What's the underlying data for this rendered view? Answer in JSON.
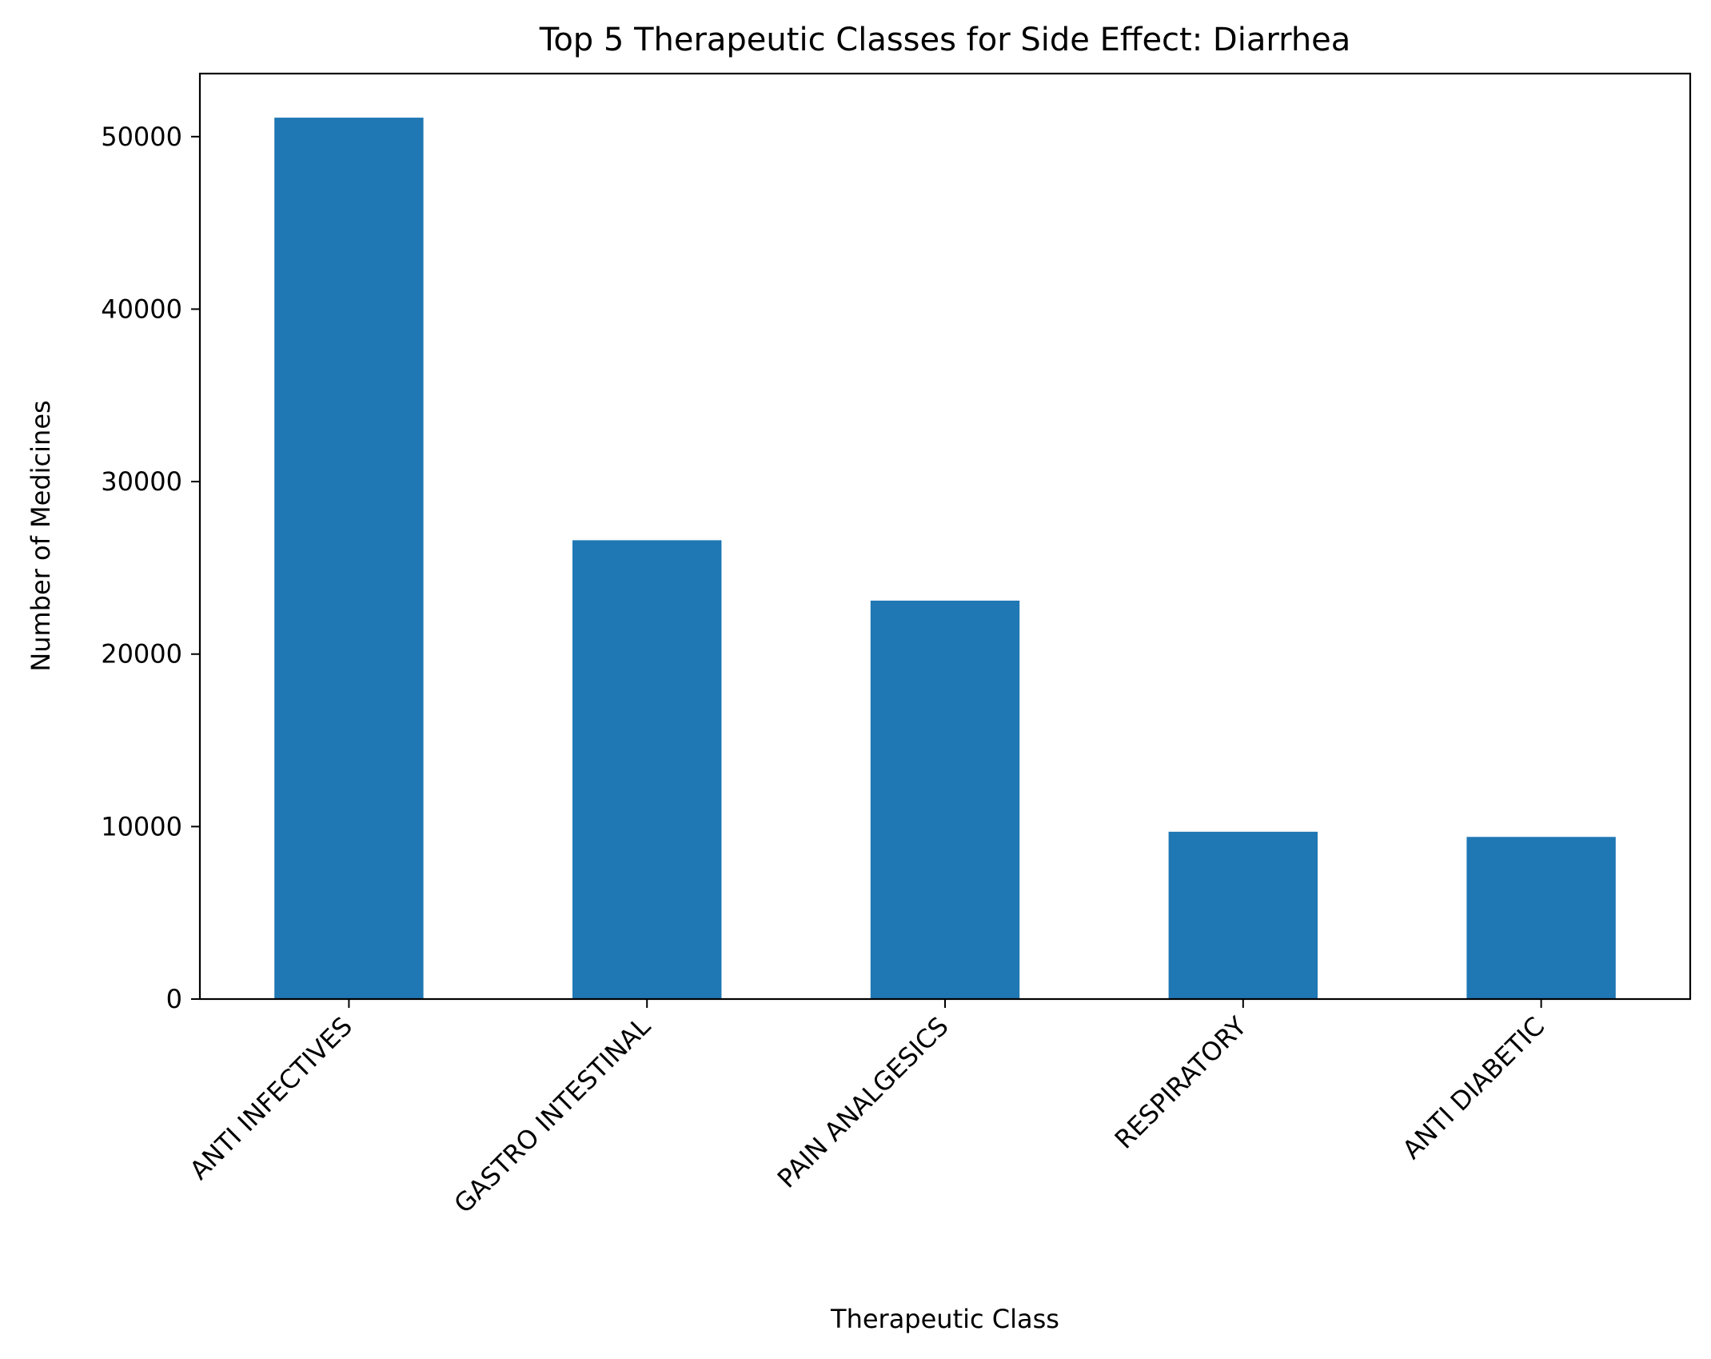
{
  "chart_data": {
    "type": "bar",
    "title": "Top 5 Therapeutic Classes for Side Effect: Diarrhea",
    "xlabel": "Therapeutic Class",
    "ylabel": "Number of Medicines",
    "categories": [
      "ANTI INFECTIVES",
      "GASTRO INTESTINAL",
      "PAIN ANALGESICS",
      "RESPIRATORY",
      "ANTI DIABETIC"
    ],
    "values": [
      51100,
      26600,
      23100,
      9700,
      9400
    ],
    "ylim": [
      0,
      53655
    ],
    "yticks": [
      0,
      10000,
      20000,
      30000,
      40000,
      50000
    ],
    "bar_color": "#1f77b4",
    "grid": false,
    "legend": "none"
  }
}
